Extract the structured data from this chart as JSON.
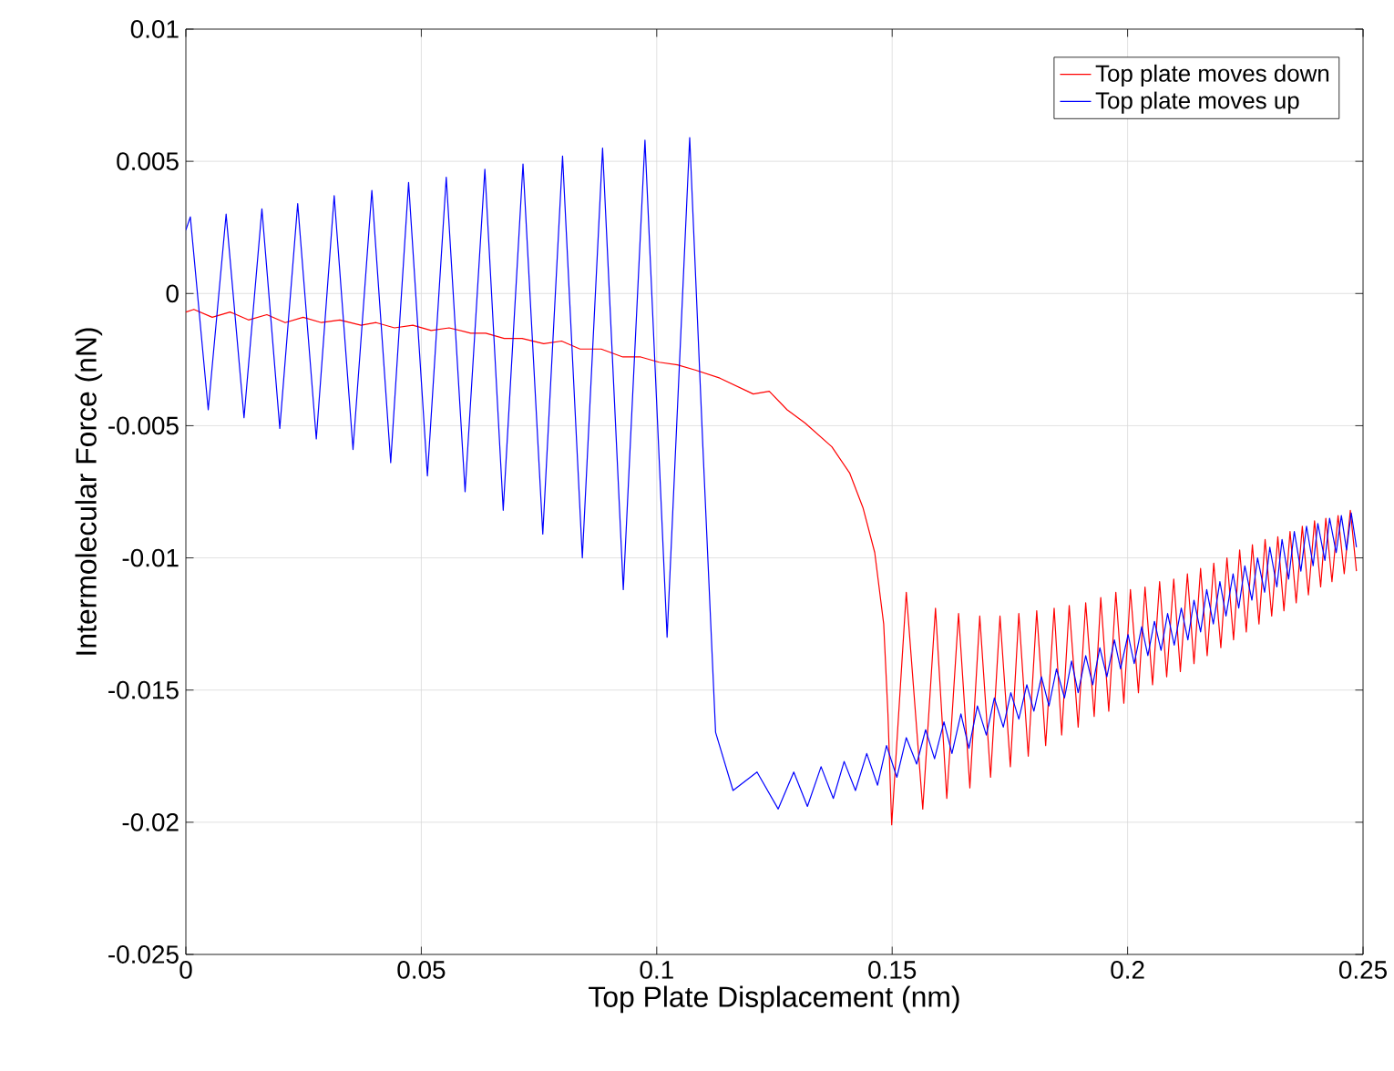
{
  "chart_data": {
    "type": "line",
    "xlabel": "Top Plate Displacement (nm)",
    "ylabel": "Intermolecular Force (nN)",
    "xlim": [
      0,
      0.25
    ],
    "ylim": [
      -0.025,
      0.01
    ],
    "xticks": [
      0,
      0.05,
      0.1,
      0.15,
      0.2,
      0.25
    ],
    "yticks": [
      -0.025,
      -0.02,
      -0.015,
      -0.01,
      -0.005,
      0,
      0.005,
      0.01
    ],
    "grid": true,
    "legend": "top right",
    "series": [
      {
        "name": "Top plate moves down",
        "color": "#ff0000",
        "x": [
          0,
          0.0017,
          0.0056,
          0.0094,
          0.0133,
          0.0172,
          0.0211,
          0.0249,
          0.0288,
          0.0327,
          0.0372,
          0.0404,
          0.0443,
          0.0482,
          0.0521,
          0.0559,
          0.0605,
          0.0637,
          0.0676,
          0.0714,
          0.076,
          0.0798,
          0.0837,
          0.0882,
          0.0928,
          0.0966,
          0.1005,
          0.1044,
          0.1083,
          0.1134,
          0.1205,
          0.1239,
          0.1277,
          0.1315,
          0.1372,
          0.141,
          0.1438,
          0.1463,
          0.1482,
          0.1491,
          0.1499,
          0.153,
          0.1565,
          0.1592,
          0.1616,
          0.1641,
          0.1665,
          0.1686,
          0.1709,
          0.1729,
          0.1751,
          0.1769,
          0.1789,
          0.1807,
          0.1826,
          0.1844,
          0.186,
          0.1876,
          0.1895,
          0.1911,
          0.1929,
          0.1943,
          0.196,
          0.1975,
          0.1992,
          0.2006,
          0.2023,
          0.2037,
          0.2053,
          0.2068,
          0.2083,
          0.2098,
          0.2112,
          0.2127,
          0.2141,
          0.2155,
          0.2169,
          0.2183,
          0.2198,
          0.2211,
          0.2225,
          0.2238,
          0.2252,
          0.2265,
          0.2279,
          0.2292,
          0.2306,
          0.2319,
          0.2332,
          0.2345,
          0.2358,
          0.2371,
          0.2384,
          0.2397,
          0.241,
          0.2421,
          0.2434,
          0.2447,
          0.246,
          0.2473,
          0.2486
        ],
        "values": [
          -0.0007,
          -0.0006,
          -0.0009,
          -0.0007,
          -0.001,
          -0.0008,
          -0.0011,
          -0.0009,
          -0.0011,
          -0.001,
          -0.0012,
          -0.0011,
          -0.0013,
          -0.0012,
          -0.0014,
          -0.0013,
          -0.0015,
          -0.0015,
          -0.0017,
          -0.0017,
          -0.0019,
          -0.0018,
          -0.0021,
          -0.0021,
          -0.0024,
          -0.0024,
          -0.0026,
          -0.0027,
          -0.0029,
          -0.0032,
          -0.0038,
          -0.0037,
          -0.0044,
          -0.0049,
          -0.0058,
          -0.0068,
          -0.0081,
          -0.0098,
          -0.0125,
          -0.0159,
          -0.0201,
          -0.0113,
          -0.0195,
          -0.0119,
          -0.0191,
          -0.0121,
          -0.0187,
          -0.0122,
          -0.0183,
          -0.0122,
          -0.0179,
          -0.0121,
          -0.0175,
          -0.012,
          -0.0171,
          -0.0119,
          -0.0167,
          -0.0118,
          -0.0164,
          -0.0117,
          -0.016,
          -0.0115,
          -0.0158,
          -0.0113,
          -0.0155,
          -0.0112,
          -0.0151,
          -0.0111,
          -0.0148,
          -0.0109,
          -0.0145,
          -0.0108,
          -0.0143,
          -0.0106,
          -0.014,
          -0.0104,
          -0.0137,
          -0.0102,
          -0.0134,
          -0.01,
          -0.0131,
          -0.0097,
          -0.0128,
          -0.0095,
          -0.0125,
          -0.0093,
          -0.0122,
          -0.0092,
          -0.012,
          -0.009,
          -0.0117,
          -0.0088,
          -0.0114,
          -0.0086,
          -0.0111,
          -0.0085,
          -0.0109,
          -0.0084,
          -0.0106,
          -0.0082,
          -0.0105
        ]
      },
      {
        "name": "Top plate moves up",
        "color": "#0000ff",
        "x": [
          0,
          0.00095,
          0.00475,
          0.00855,
          0.01235,
          0.01615,
          0.01995,
          0.02375,
          0.0277,
          0.0315,
          0.0355,
          0.0395,
          0.0435,
          0.0473,
          0.0513,
          0.0553,
          0.0593,
          0.0635,
          0.0674,
          0.0716,
          0.0758,
          0.08,
          0.0842,
          0.0885,
          0.0929,
          0.0975,
          0.1022,
          0.107,
          0.1098,
          0.1125,
          0.1162,
          0.1213,
          0.1258,
          0.1291,
          0.132,
          0.1349,
          0.1375,
          0.1398,
          0.1422,
          0.1446,
          0.1469,
          0.1488,
          0.151,
          0.153,
          0.1552,
          0.1571,
          0.159,
          0.161,
          0.1627,
          0.1646,
          0.1663,
          0.1681,
          0.17,
          0.1717,
          0.1736,
          0.1752,
          0.1769,
          0.1786,
          0.1801,
          0.1817,
          0.1833,
          0.1849,
          0.1866,
          0.1881,
          0.1895,
          0.1911,
          0.1926,
          0.1941,
          0.1956,
          0.1972,
          0.1985,
          0.2001,
          0.2014,
          0.203,
          0.2043,
          0.2057,
          0.2071,
          0.2085,
          0.2099,
          0.2114,
          0.2128,
          0.2141,
          0.2155,
          0.2168,
          0.2182,
          0.2196,
          0.2209,
          0.2224,
          0.2236,
          0.2249,
          0.2264,
          0.2276,
          0.2291,
          0.2302,
          0.2317,
          0.2328,
          0.2342,
          0.2354,
          0.2368,
          0.238,
          0.2394,
          0.2404,
          0.2419,
          0.2429,
          0.2443,
          0.2454,
          0.2465,
          0.2475,
          0.2486
        ],
        "values": [
          0.0024,
          0.0029,
          -0.0044,
          0.003,
          -0.0047,
          0.0032,
          -0.0051,
          0.0034,
          -0.0055,
          0.0037,
          -0.0059,
          0.0039,
          -0.0064,
          0.0042,
          -0.0069,
          0.0044,
          -0.0075,
          0.0047,
          -0.0082,
          0.0049,
          -0.0091,
          0.0052,
          -0.01,
          0.0055,
          -0.0112,
          0.0058,
          -0.013,
          0.0059,
          -0.0058,
          -0.0166,
          -0.0188,
          -0.0181,
          -0.0195,
          -0.0181,
          -0.0194,
          -0.0179,
          -0.0191,
          -0.0177,
          -0.0188,
          -0.0174,
          -0.0186,
          -0.0171,
          -0.0183,
          -0.0168,
          -0.0178,
          -0.0165,
          -0.0176,
          -0.0162,
          -0.0174,
          -0.0159,
          -0.0172,
          -0.0156,
          -0.0167,
          -0.0153,
          -0.0164,
          -0.0151,
          -0.0161,
          -0.0148,
          -0.0158,
          -0.0145,
          -0.0156,
          -0.0142,
          -0.0153,
          -0.0139,
          -0.0151,
          -0.0137,
          -0.0148,
          -0.0134,
          -0.0145,
          -0.0131,
          -0.0142,
          -0.0129,
          -0.014,
          -0.0126,
          -0.0137,
          -0.0124,
          -0.0135,
          -0.0121,
          -0.0133,
          -0.0119,
          -0.0131,
          -0.0116,
          -0.0128,
          -0.0112,
          -0.0125,
          -0.0109,
          -0.0122,
          -0.0106,
          -0.0119,
          -0.0103,
          -0.0116,
          -0.01,
          -0.0113,
          -0.0096,
          -0.0111,
          -0.0093,
          -0.0108,
          -0.009,
          -0.0105,
          -0.0088,
          -0.0103,
          -0.0087,
          -0.0101,
          -0.0085,
          -0.0098,
          -0.0084,
          -0.0097,
          -0.0083,
          -0.0096
        ]
      }
    ]
  }
}
